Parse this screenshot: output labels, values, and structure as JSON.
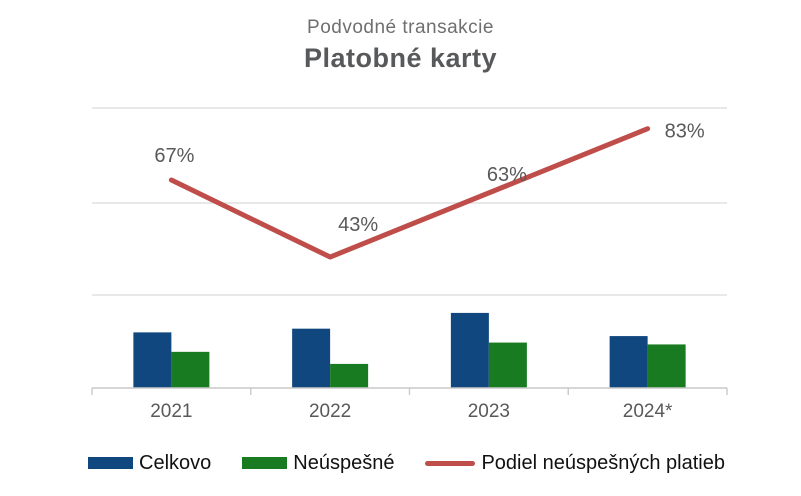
{
  "header": {
    "subtitle": "Podvodné transakcie",
    "title": "Platobné karty"
  },
  "colors": {
    "total_bar": "#10477E",
    "failed_bar": "#187A21",
    "trend_line": "#BF4E4B",
    "gridline": "#D9D9D9",
    "axis_line": "#C9C9C9",
    "data_label": "#595959",
    "category_label": "#595959",
    "legend_text": "#111111",
    "subtitle_text": "#6F6F6F",
    "title_text": "#58595B"
  },
  "chart_data": {
    "type": "combo",
    "title": "Platobné karty",
    "subtitle": "Podvodné transakcie",
    "categories": [
      "2021",
      "2022",
      "2023",
      "2024*"
    ],
    "series": [
      {
        "name": "Celkovo",
        "type": "bar",
        "color_key": "total_bar",
        "values": [
          0.6,
          0.64,
          0.81,
          0.56
        ],
        "note": "no value axis shown; bar values estimated in gridline units"
      },
      {
        "name": "Neúspešné",
        "type": "bar",
        "color_key": "failed_bar",
        "values": [
          0.39,
          0.26,
          0.49,
          0.47
        ],
        "note": "no value axis shown; bar values estimated in gridline units"
      },
      {
        "name": "Podiel neúspešných platieb",
        "type": "line",
        "color_key": "trend_line",
        "values": [
          67,
          43,
          63,
          83
        ],
        "data_labels": [
          "67%",
          "43%",
          "63%",
          "83%"
        ]
      }
    ],
    "value_axis_visible": false,
    "grid": true,
    "legend_position": "bottom"
  },
  "legend": {
    "items": [
      {
        "label": "Celkovo",
        "swatch": "rect",
        "color_key": "total_bar"
      },
      {
        "label": "Neúspešné",
        "swatch": "rect",
        "color_key": "failed_bar"
      },
      {
        "label": "Podiel neúspešných platieb",
        "swatch": "line",
        "color_key": "trend_line"
      }
    ]
  }
}
